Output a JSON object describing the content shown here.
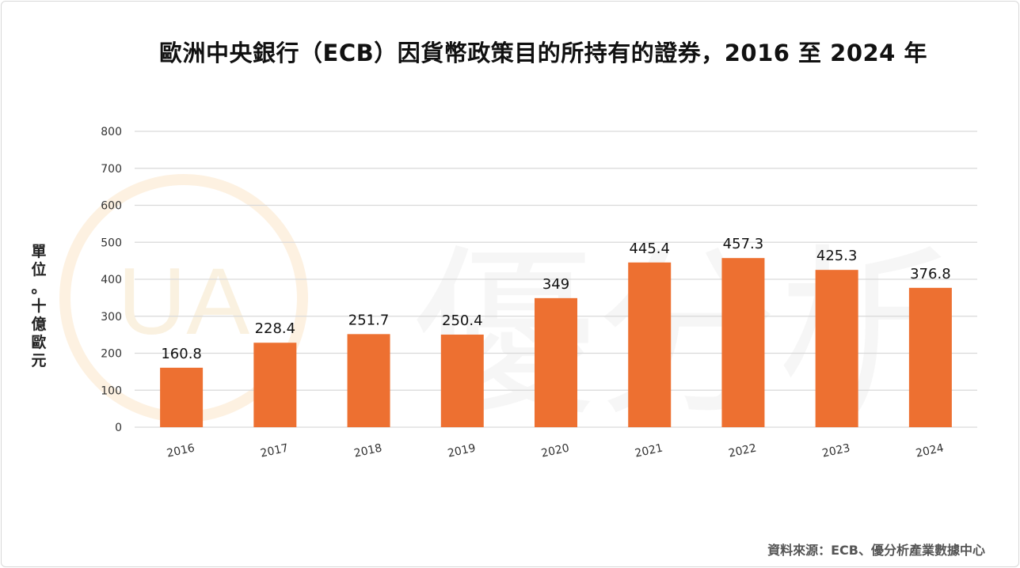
{
  "title": "歐洲中央銀行（ECB）因貨幣政策目的所持有的證券，2016 至 2024 年",
  "ylabel_chars": [
    "單",
    "位",
    "。",
    "十",
    "億",
    "歐",
    "元"
  ],
  "source": "資料來源：ECB、優分析產業數據中心",
  "watermark": {
    "text": "優分析",
    "logo_text": "UA"
  },
  "colors": {
    "bar": "#ED7031",
    "grid": "#d9d9d9",
    "axis_text": "#333333"
  },
  "chart_data": {
    "type": "bar",
    "title": "歐洲中央銀行（ECB）因貨幣政策目的所持有的證券，2016 至 2024 年",
    "xlabel": "",
    "ylabel": "單位。十億歐元",
    "categories": [
      "2016",
      "2017",
      "2018",
      "2019",
      "2020",
      "2021",
      "2022",
      "2023",
      "2024"
    ],
    "values": [
      160.8,
      228.4,
      251.7,
      250.4,
      349,
      445.4,
      457.3,
      425.3,
      376.8
    ],
    "value_labels": [
      "160.8",
      "228.4",
      "251.7",
      "250.4",
      "349",
      "445.4",
      "457.3",
      "425.3",
      "376.8"
    ],
    "ylim": [
      0,
      800
    ],
    "yticks": [
      0,
      100,
      200,
      300,
      400,
      500,
      600,
      700,
      800
    ],
    "grid": true,
    "legend": "none"
  }
}
